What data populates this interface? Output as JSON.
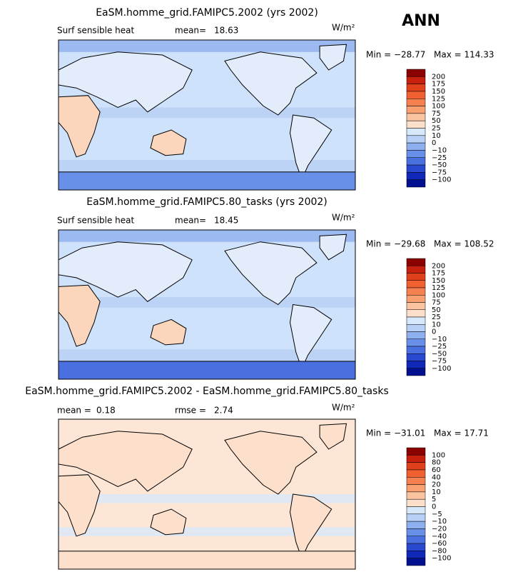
{
  "header": {
    "title": "ANN"
  },
  "panels": [
    {
      "title": "EaSM.homme_grid.FAMIPC5.2002 (yrs 2002)",
      "labels": [
        "Surf sensible heat",
        "mean=",
        "18.63"
      ],
      "units": "W/m²",
      "min": "Min = −28.77",
      "max": "Max = 114.33",
      "colorbar": {
        "labels": [
          "200",
          "175",
          "150",
          "125",
          "100",
          "75",
          "50",
          "25",
          "10",
          "0",
          "−10",
          "−25",
          "−50",
          "−75",
          "−100"
        ],
        "colors": [
          "#8b0000",
          "#c8200e",
          "#e0401a",
          "#f06030",
          "#f58050",
          "#f8a070",
          "#fbc4a0",
          "#fde0cc",
          "#d8e8fb",
          "#b8d0f5",
          "#8fb0ef",
          "#6890e8",
          "#4a70e0",
          "#2848d0",
          "#1028b8",
          "#00108f"
        ]
      }
    },
    {
      "title": "EaSM.homme_grid.FAMIPC5.80_tasks (yrs 2002)",
      "labels": [
        "Surf sensible heat",
        "mean=",
        "18.45"
      ],
      "units": "W/m²",
      "min": "Min = −29.68",
      "max": "Max = 108.52",
      "colorbar": {
        "labels": [
          "200",
          "175",
          "150",
          "125",
          "100",
          "75",
          "50",
          "25",
          "10",
          "0",
          "−10",
          "−25",
          "−50",
          "−75",
          "−100"
        ],
        "colors": [
          "#8b0000",
          "#c8200e",
          "#e0401a",
          "#f06030",
          "#f58050",
          "#f8a070",
          "#fbc4a0",
          "#fde0cc",
          "#d8e8fb",
          "#b8d0f5",
          "#8fb0ef",
          "#6890e8",
          "#4a70e0",
          "#2848d0",
          "#1028b8",
          "#00108f"
        ]
      }
    },
    {
      "title": "EaSM.homme_grid.FAMIPC5.2002 - EaSM.homme_grid.FAMIPC5.80_tasks",
      "labels": [
        "mean =",
        "0.18",
        "rmse =",
        "2.74"
      ],
      "units": "W/m²",
      "min": "Min = −31.01",
      "max": "Max = 17.71",
      "colorbar": {
        "labels": [
          "100",
          "80",
          "60",
          "40",
          "20",
          "10",
          "5",
          "0",
          "−5",
          "−10",
          "−20",
          "−40",
          "−60",
          "−80",
          "−100"
        ],
        "colors": [
          "#8b0000",
          "#c8200e",
          "#e0401a",
          "#f06030",
          "#f58050",
          "#f8a070",
          "#fbc4a0",
          "#fde0cc",
          "#d8e8fb",
          "#b8d0f5",
          "#8fb0ef",
          "#6890e8",
          "#4a70e0",
          "#2848d0",
          "#1028b8",
          "#00108f"
        ]
      }
    }
  ]
}
